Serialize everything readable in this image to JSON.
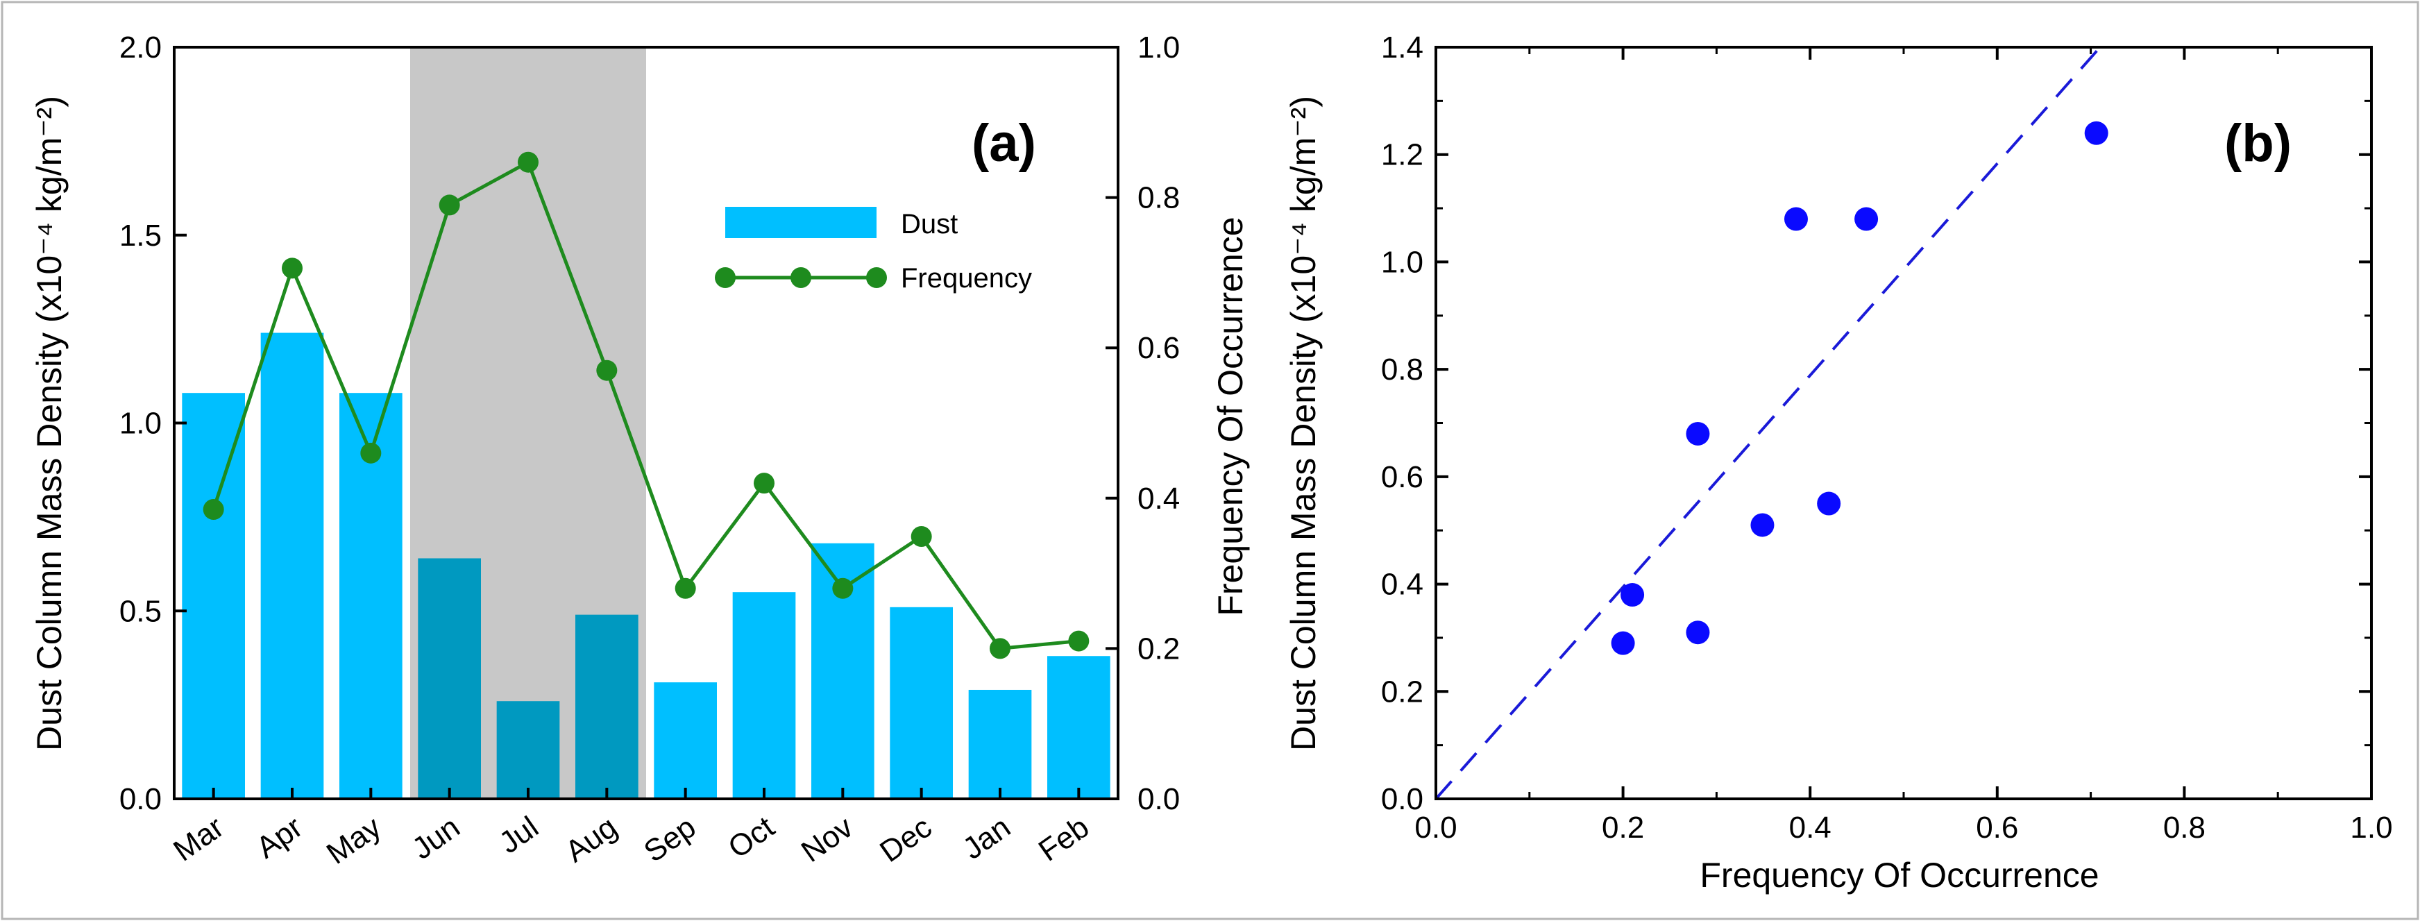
{
  "chart_data": [
    {
      "type": "bar",
      "panel_label": "(a)",
      "categories": [
        "Mar",
        "Apr",
        "May",
        "Jun",
        "Jul",
        "Aug",
        "Sep",
        "Oct",
        "Nov",
        "Dec",
        "Jan",
        "Feb"
      ],
      "shaded_categories": [
        "Jun",
        "Jul",
        "Aug"
      ],
      "series": [
        {
          "name": "Dust",
          "kind": "bar",
          "axis": "left",
          "values": [
            1.08,
            1.24,
            1.08,
            0.64,
            0.26,
            0.49,
            0.31,
            0.55,
            0.68,
            0.51,
            0.29,
            0.38
          ]
        },
        {
          "name": "Frequency",
          "kind": "line-marker",
          "axis": "right",
          "values": [
            0.385,
            0.706,
            0.46,
            0.79,
            0.847,
            0.57,
            0.28,
            0.42,
            0.28,
            0.349,
            0.2,
            0.21
          ]
        }
      ],
      "ylabel": "Dust Column Mass Density (x10⁻⁴ kg/m⁻²)",
      "ylim": [
        0,
        2.0
      ],
      "yticks": [
        "0.0",
        "0.5",
        "1.0",
        "1.5",
        "2.0"
      ],
      "y2label": "Frequency Of Occurrence",
      "y2lim": [
        0,
        1.0
      ],
      "y2ticks": [
        "0.0",
        "0.2",
        "0.4",
        "0.6",
        "0.8",
        "1.0"
      ],
      "legend": [
        "Dust",
        "Frequency"
      ],
      "legend_position": "upper-right",
      "colors": {
        "bar": "#00bfff",
        "bar_shaded": "#0099c0",
        "shade": "#c8c8c8",
        "line": "#1e8b1e"
      }
    },
    {
      "type": "scatter",
      "panel_label": "(b)",
      "x": [
        0.2,
        0.21,
        0.28,
        0.28,
        0.349,
        0.385,
        0.42,
        0.46,
        0.706
      ],
      "y": [
        0.29,
        0.38,
        0.31,
        0.68,
        0.51,
        1.08,
        0.55,
        1.08,
        1.24
      ],
      "fit_line": {
        "style": "dashed",
        "x": [
          0,
          0.71
        ],
        "y": [
          0,
          1.4
        ]
      },
      "xlabel": "Frequency Of Occurrence",
      "ylabel": "Dust Column Mass Density (x10⁻⁴ kg/m⁻²)",
      "xlim": [
        0,
        1.0
      ],
      "ylim": [
        0,
        1.4
      ],
      "xticks": [
        "0.0",
        "0.2",
        "0.4",
        "0.6",
        "0.8",
        "1.0"
      ],
      "yticks": [
        "0.0",
        "0.2",
        "0.4",
        "0.6",
        "0.8",
        "1.0",
        "1.2",
        "1.4"
      ],
      "colors": {
        "point": "#0a0aff",
        "fit": "#1a1ad8"
      }
    }
  ]
}
